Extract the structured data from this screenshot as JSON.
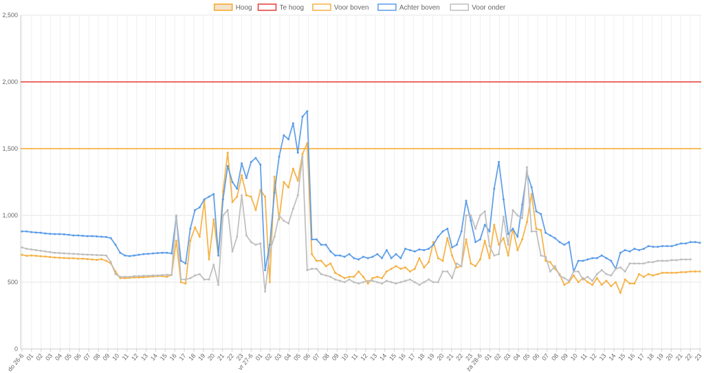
{
  "chart_data": {
    "type": "line",
    "title": "",
    "xlabel": "",
    "ylabel": "",
    "ylim": [
      0,
      2500
    ],
    "y_ticks": [
      0,
      500,
      1000,
      1500,
      2000,
      2500
    ],
    "y_tick_labels": [
      "0",
      "500",
      "1,000",
      "1,500",
      "2,000",
      "2,500"
    ],
    "grid": true,
    "legend_position": "top-center",
    "x_tick_labels": [
      "do 26-6",
      "01",
      "02",
      "03",
      "04",
      "05",
      "06",
      "07",
      "08",
      "09",
      "10",
      "11",
      "12",
      "13",
      "14",
      "15",
      "16",
      "17",
      "18",
      "19",
      "20",
      "21",
      "22",
      "23",
      "vr 27-6",
      "01",
      "02",
      "03",
      "04",
      "05",
      "06",
      "07",
      "08",
      "09",
      "10",
      "11",
      "12",
      "13",
      "14",
      "15",
      "16",
      "17",
      "18",
      "19",
      "20",
      "21",
      "22",
      "23",
      "za 28-6",
      "01",
      "02",
      "03",
      "04",
      "05",
      "06",
      "07",
      "08",
      "09",
      "10",
      "11",
      "12",
      "13",
      "14",
      "15",
      "16",
      "17",
      "18",
      "19",
      "20",
      "21",
      "22",
      "23"
    ],
    "thresholds": [
      {
        "name": "Hoog",
        "value": 1500,
        "color": "#f5a623",
        "fill": "#f3e3cc"
      },
      {
        "name": "Te hoog",
        "value": 2000,
        "color": "#e53935",
        "fill": "#ffffff"
      }
    ],
    "series": [
      {
        "name": "Voor boven",
        "color": "#f5b041",
        "values": [
          705,
          697,
          700,
          697,
          694,
          692,
          688,
          685,
          683,
          681,
          679,
          679,
          676,
          676,
          673,
          670,
          667,
          672,
          660,
          640,
          580,
          530,
          530,
          532,
          535,
          535,
          537,
          540,
          542,
          545,
          545,
          540,
          555,
          810,
          500,
          490,
          810,
          910,
          840,
          1110,
          670,
          970,
          700,
          1180,
          1470,
          1100,
          1140,
          1300,
          1150,
          1140,
          1040,
          1190,
          1140,
          500,
          1290,
          970,
          1250,
          1210,
          1350,
          1260,
          1460,
          1540,
          710,
          660,
          660,
          620,
          640,
          570,
          550,
          530,
          540,
          540,
          580,
          540,
          490,
          530,
          540,
          530,
          580,
          600,
          620,
          600,
          610,
          580,
          600,
          680,
          610,
          650,
          800,
          680,
          660,
          830,
          700,
          610,
          620,
          820,
          640,
          620,
          670,
          810,
          680,
          930,
          780,
          830,
          700,
          900,
          740,
          820,
          950,
          1160,
          900,
          890,
          660,
          650,
          600,
          560,
          480,
          500,
          550,
          500,
          530,
          500,
          480,
          530,
          480,
          510,
          470,
          500,
          420,
          520,
          490,
          490,
          560,
          540,
          560,
          550,
          560,
          570,
          570,
          570,
          570,
          575,
          575,
          580,
          580,
          580
        ]
      },
      {
        "name": "Achter boven",
        "color": "#5a9be8",
        "values": [
          880,
          880,
          875,
          872,
          870,
          865,
          862,
          860,
          860,
          858,
          855,
          850,
          850,
          847,
          845,
          845,
          843,
          840,
          838,
          830,
          780,
          720,
          700,
          695,
          700,
          705,
          710,
          712,
          715,
          718,
          720,
          720,
          715,
          990,
          660,
          640,
          900,
          1040,
          1060,
          1120,
          1140,
          1160,
          700,
          1120,
          1370,
          1250,
          1200,
          1390,
          1280,
          1400,
          1430,
          1380,
          590,
          780,
          1170,
          1440,
          1600,
          1570,
          1690,
          1470,
          1740,
          1780,
          820,
          820,
          780,
          780,
          730,
          700,
          700,
          690,
          710,
          680,
          670,
          690,
          680,
          690,
          710,
          680,
          740,
          680,
          710,
          680,
          750,
          740,
          730,
          745,
          740,
          750,
          780,
          840,
          880,
          900,
          760,
          780,
          880,
          1110,
          960,
          800,
          820,
          930,
          880,
          1200,
          1400,
          1120,
          860,
          900,
          840,
          1080,
          1320,
          1210,
          1030,
          1010,
          870,
          850,
          830,
          800,
          780,
          800,
          580,
          660,
          660,
          670,
          680,
          680,
          700,
          680,
          660,
          600,
          720,
          740,
          730,
          750,
          740,
          750,
          770,
          765,
          765,
          770,
          770,
          770,
          780,
          790,
          790,
          800,
          800,
          795
        ]
      },
      {
        "name": "Voor onder",
        "color": "#bdbdbd",
        "values": [
          760,
          750,
          745,
          740,
          735,
          730,
          725,
          720,
          718,
          716,
          714,
          712,
          710,
          708,
          706,
          705,
          703,
          702,
          700,
          650,
          560,
          540,
          540,
          540,
          545,
          545,
          548,
          548,
          550,
          550,
          553,
          555,
          555,
          1000,
          520,
          520,
          530,
          550,
          560,
          520,
          520,
          630,
          480,
          1000,
          1040,
          730,
          840,
          1150,
          850,
          800,
          780,
          790,
          430,
          730,
          840,
          1000,
          960,
          940,
          1050,
          1150,
          1440,
          590,
          600,
          600,
          560,
          550,
          540,
          520,
          510,
          500,
          520,
          500,
          490,
          500,
          510,
          510,
          500,
          490,
          510,
          500,
          490,
          500,
          510,
          520,
          500,
          480,
          500,
          520,
          500,
          500,
          580,
          580,
          530,
          640,
          620,
          1000,
          1000,
          900,
          1000,
          1030,
          770,
          700,
          710,
          990,
          780,
          1040,
          1000,
          980,
          1360,
          880,
          880,
          700,
          690,
          580,
          620,
          550,
          530,
          510,
          580,
          580,
          520,
          540,
          510,
          560,
          590,
          560,
          550,
          600,
          610,
          580,
          640,
          640,
          640,
          640,
          650,
          650,
          660,
          660,
          660,
          665,
          665,
          670,
          670,
          670
        ]
      }
    ]
  }
}
